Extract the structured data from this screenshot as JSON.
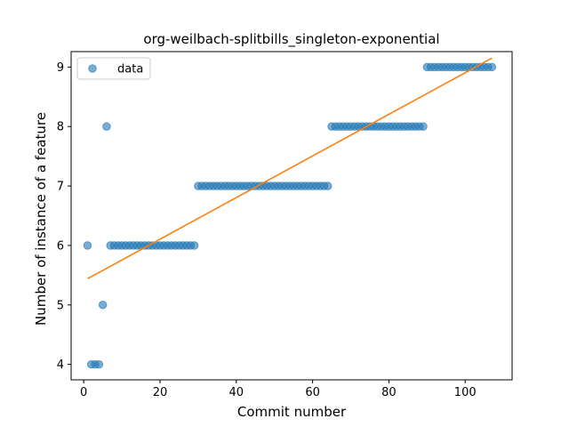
{
  "chart_data": {
    "type": "scatter",
    "title": "org-weilbach-splitbills_singleton-exponential",
    "xlabel": "Commit number",
    "ylabel": "Number of instance of a feature",
    "xlim": [
      -3.3,
      112.3
    ],
    "ylim": [
      3.74,
      9.26
    ],
    "xticks": [
      0,
      20,
      40,
      60,
      80,
      100
    ],
    "yticks": [
      4,
      5,
      6,
      7,
      8,
      9
    ],
    "legend": {
      "placement": "upper-left",
      "entries": [
        "data"
      ]
    },
    "colors": {
      "data": "#1f77b4",
      "fit": "#ff7f0e"
    },
    "series": [
      {
        "name": "data",
        "style": "markers",
        "x": [
          1,
          2,
          3,
          4,
          5,
          6,
          7,
          8,
          9,
          10,
          11,
          12,
          13,
          14,
          15,
          16,
          17,
          18,
          19,
          20,
          21,
          22,
          23,
          24,
          25,
          26,
          27,
          28,
          29,
          30,
          31,
          32,
          33,
          34,
          35,
          36,
          37,
          38,
          39,
          40,
          41,
          42,
          43,
          44,
          45,
          46,
          47,
          48,
          49,
          50,
          51,
          52,
          53,
          54,
          55,
          56,
          57,
          58,
          59,
          60,
          61,
          62,
          63,
          64,
          65,
          66,
          67,
          68,
          69,
          70,
          71,
          72,
          73,
          74,
          75,
          76,
          77,
          78,
          79,
          80,
          81,
          82,
          83,
          84,
          85,
          86,
          87,
          88,
          89,
          90,
          91,
          92,
          93,
          94,
          95,
          96,
          97,
          98,
          99,
          100,
          101,
          102,
          103,
          104,
          105,
          106,
          107
        ],
        "y": [
          6,
          4,
          4,
          4,
          5,
          8,
          6,
          6,
          6,
          6,
          6,
          6,
          6,
          6,
          6,
          6,
          6,
          6,
          6,
          6,
          6,
          6,
          6,
          6,
          6,
          6,
          6,
          6,
          6,
          7,
          7,
          7,
          7,
          7,
          7,
          7,
          7,
          7,
          7,
          7,
          7,
          7,
          7,
          7,
          7,
          7,
          7,
          7,
          7,
          7,
          7,
          7,
          7,
          7,
          7,
          7,
          7,
          7,
          7,
          7,
          7,
          7,
          7,
          7,
          8,
          8,
          8,
          8,
          8,
          8,
          8,
          8,
          8,
          8,
          8,
          8,
          8,
          8,
          8,
          8,
          8,
          8,
          8,
          8,
          8,
          8,
          8,
          8,
          8,
          9,
          9,
          9,
          9,
          9,
          9,
          9,
          9,
          9,
          9,
          9,
          9,
          9,
          9,
          9,
          9,
          9,
          9
        ]
      },
      {
        "style": "line",
        "x": [
          1,
          107
        ],
        "y": [
          5.44,
          9.15
        ]
      }
    ]
  }
}
